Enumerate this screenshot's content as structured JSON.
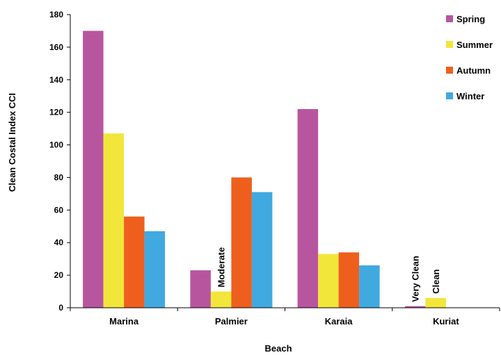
{
  "chart_data": {
    "type": "bar",
    "categories": [
      "Marina",
      "Palmier",
      "Karaia",
      "Kuriat"
    ],
    "series": [
      {
        "name": "Spring",
        "color": "#b8559f",
        "values": [
          170,
          23,
          122,
          1
        ]
      },
      {
        "name": "Summer",
        "color": "#f2e63a",
        "values": [
          107,
          10,
          33,
          6
        ]
      },
      {
        "name": "Autumn",
        "color": "#ee5f1e",
        "values": [
          56,
          80,
          34,
          0
        ]
      },
      {
        "name": "Winter",
        "color": "#40a9e0",
        "values": [
          47,
          71,
          26,
          0
        ]
      }
    ],
    "xlabel": "Beach",
    "ylabel": "Clean Costal Index CCI",
    "ylim": [
      0,
      180
    ],
    "yticks": [
      0,
      20,
      40,
      60,
      80,
      100,
      120,
      140,
      160,
      180
    ],
    "grid": false,
    "legend_position": "top-right",
    "legend_labels": [
      "Spring",
      "Summer",
      "Autumn",
      "Winter"
    ],
    "annotations": [
      {
        "text": "Moderate",
        "category": "Palmier",
        "series": "Summer"
      },
      {
        "text": "Very Clean",
        "category": "Kuriat",
        "series": "Spring"
      },
      {
        "text": "Clean",
        "category": "Kuriat",
        "series": "Summer"
      }
    ]
  }
}
